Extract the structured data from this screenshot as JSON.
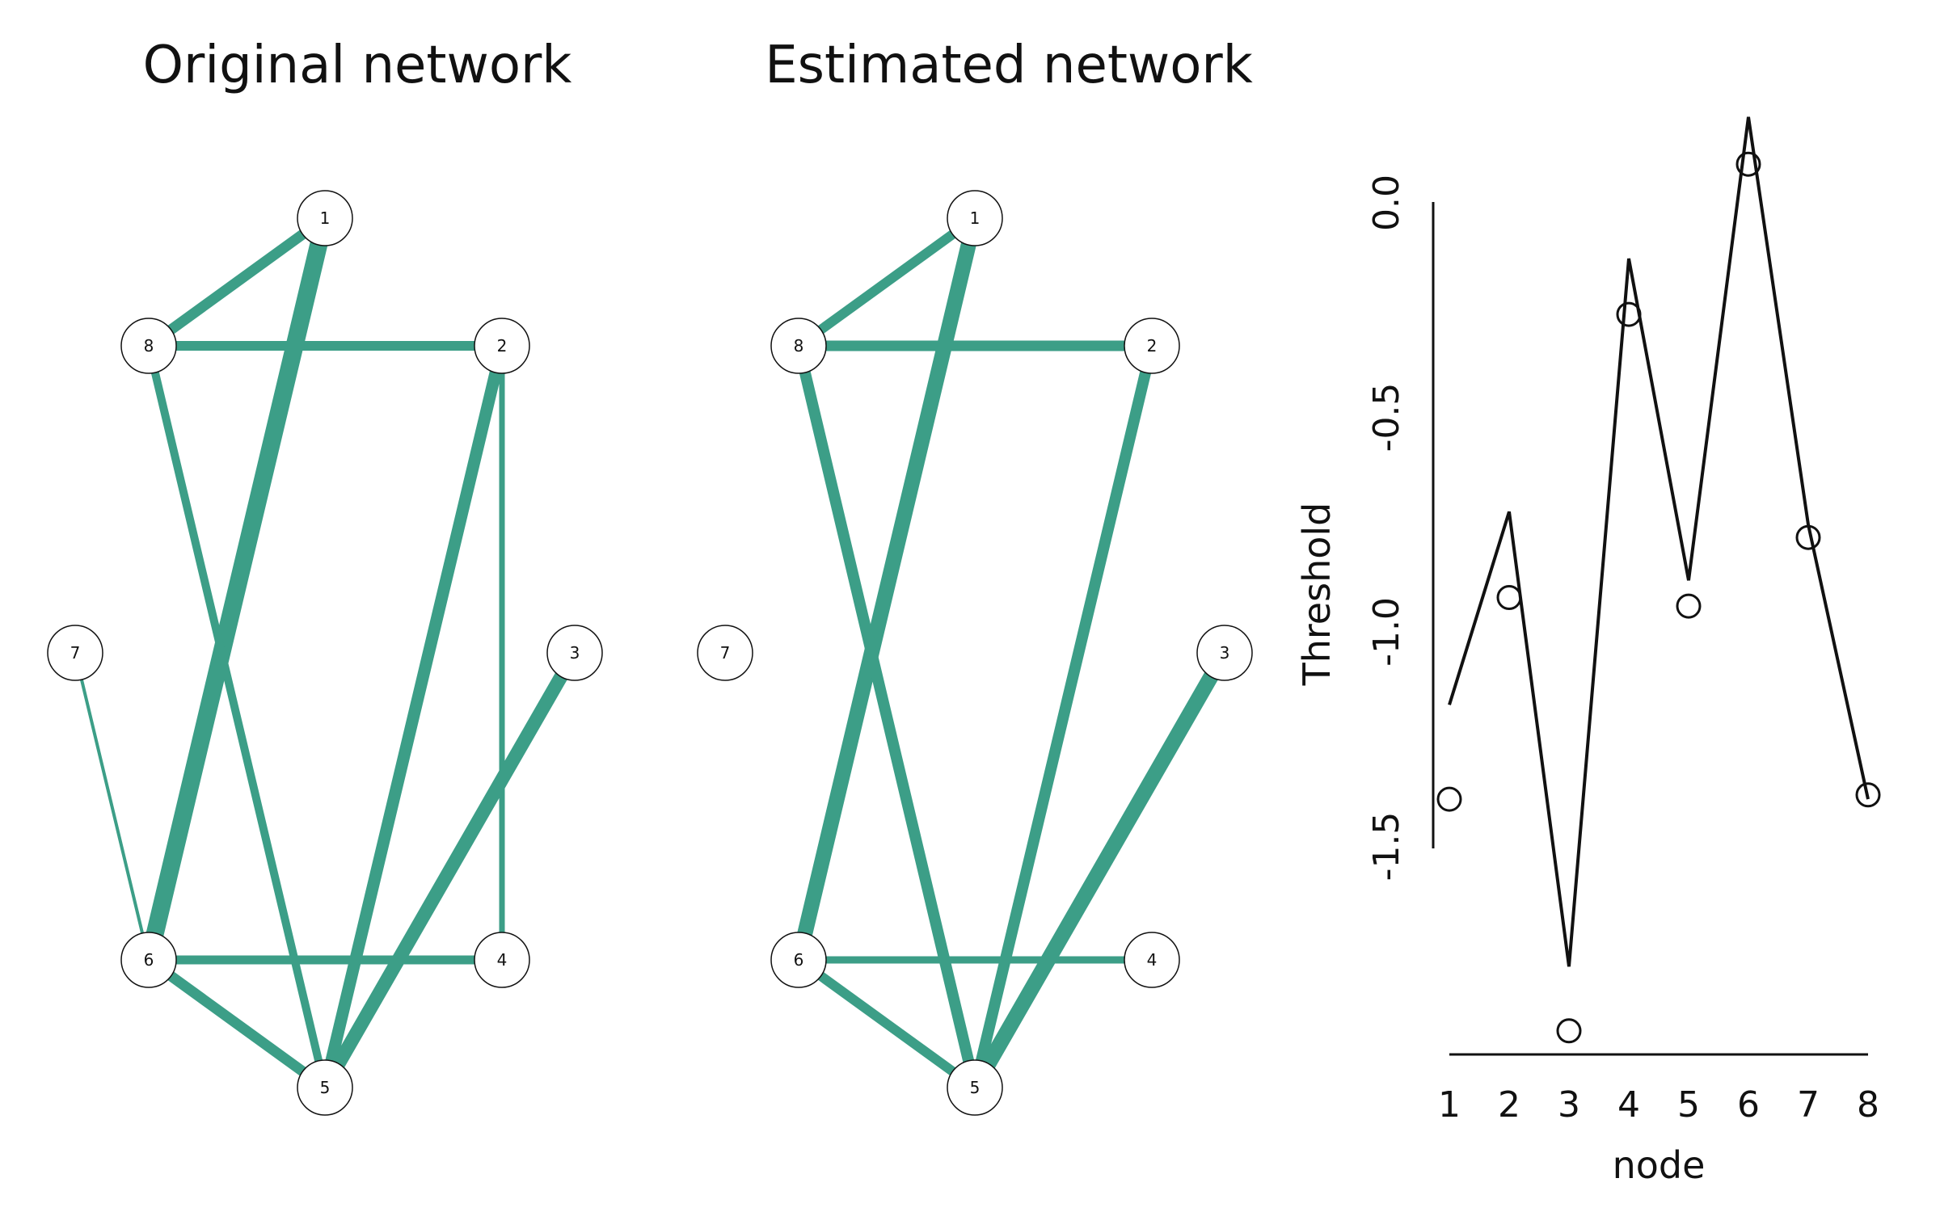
{
  "chart_data": [
    {
      "type": "network",
      "title": "Original network",
      "edge_color": "#3c9e87",
      "nodes": [
        "1",
        "2",
        "3",
        "4",
        "5",
        "6",
        "7",
        "8"
      ],
      "edges": [
        {
          "from": "1",
          "to": "8",
          "weight": 0.55
        },
        {
          "from": "1",
          "to": "6",
          "weight": 1.0
        },
        {
          "from": "8",
          "to": "2",
          "weight": 0.5
        },
        {
          "from": "8",
          "to": "5",
          "weight": 0.4
        },
        {
          "from": "2",
          "to": "5",
          "weight": 0.65
        },
        {
          "from": "2",
          "to": "4",
          "weight": 0.25
        },
        {
          "from": "3",
          "to": "5",
          "weight": 0.75
        },
        {
          "from": "7",
          "to": "6",
          "weight": 0.1
        },
        {
          "from": "6",
          "to": "4",
          "weight": 0.45
        },
        {
          "from": "6",
          "to": "5",
          "weight": 0.55
        }
      ]
    },
    {
      "type": "network",
      "title": "Estimated network",
      "edge_color": "#3c9e87",
      "nodes": [
        "1",
        "2",
        "3",
        "4",
        "5",
        "6",
        "7",
        "8"
      ],
      "edges": [
        {
          "from": "1",
          "to": "8",
          "weight": 0.5
        },
        {
          "from": "1",
          "to": "6",
          "weight": 0.85
        },
        {
          "from": "8",
          "to": "2",
          "weight": 0.55
        },
        {
          "from": "8",
          "to": "5",
          "weight": 0.6
        },
        {
          "from": "2",
          "to": "5",
          "weight": 0.6
        },
        {
          "from": "3",
          "to": "5",
          "weight": 0.85
        },
        {
          "from": "6",
          "to": "4",
          "weight": 0.35
        },
        {
          "from": "6",
          "to": "5",
          "weight": 0.5
        }
      ]
    },
    {
      "type": "line",
      "title": "",
      "xlabel": "node",
      "ylabel": "Threshold",
      "x": [
        1,
        2,
        3,
        4,
        5,
        6,
        7,
        8
      ],
      "xticks": [
        "1",
        "2",
        "3",
        "4",
        "5",
        "6",
        "7",
        "8"
      ],
      "yticks": [
        {
          "value": 0.0,
          "label": "0.0"
        },
        {
          "value": -0.5,
          "label": "-0.5"
        },
        {
          "value": -1.0,
          "label": "-1.0"
        },
        {
          "value": -1.5,
          "label": "-1.5"
        }
      ],
      "ylim": [
        -1.93,
        0.17
      ],
      "series": [
        {
          "style": "line",
          "values": [
            -1.17,
            -0.72,
            -1.78,
            -0.13,
            -0.88,
            0.2,
            -0.75,
            -1.39
          ]
        },
        {
          "style": "points",
          "values": [
            -1.39,
            -0.92,
            -1.93,
            -0.26,
            -0.94,
            0.09,
            -0.78,
            -1.38
          ]
        }
      ],
      "grid": false,
      "legend": "none"
    }
  ]
}
